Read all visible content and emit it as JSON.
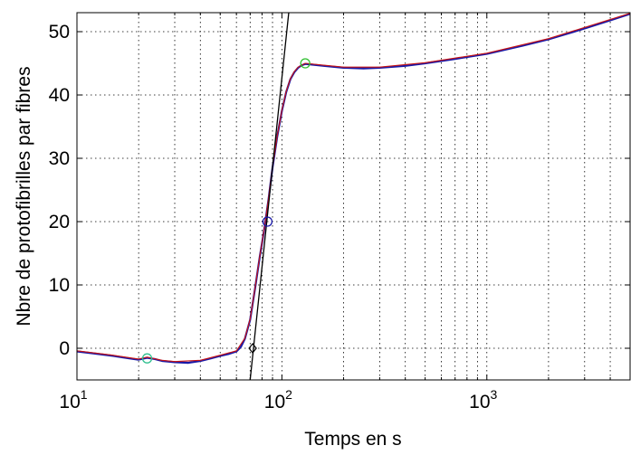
{
  "chart_data": {
    "type": "line",
    "title": "",
    "xlabel": "Temps en s",
    "ylabel": "Nbre de protofibrilles par fibres",
    "x_scale": "log",
    "xlim": [
      10,
      5000
    ],
    "ylim": [
      -5,
      53
    ],
    "grid": true,
    "x_ticks": [
      {
        "value": 10,
        "base": "10",
        "exp": "1"
      },
      {
        "value": 100,
        "base": "10",
        "exp": "2"
      },
      {
        "value": 1000,
        "base": "10",
        "exp": "3"
      }
    ],
    "y_ticks": [
      0,
      10,
      20,
      30,
      40,
      50
    ],
    "series": [
      {
        "color": "#1a1aa8",
        "x": [
          10,
          12,
          15,
          18,
          20,
          22,
          24,
          26,
          30,
          35,
          40,
          45,
          50,
          55,
          60,
          63,
          66,
          70,
          74,
          78,
          82,
          86,
          90,
          95,
          100,
          105,
          110,
          115,
          120,
          125,
          130,
          140,
          160,
          200,
          250,
          300,
          400,
          500,
          700,
          1000,
          1500,
          2000,
          3000,
          4000,
          5000
        ],
        "y": [
          -0.5,
          -0.8,
          -1.2,
          -1.6,
          -1.8,
          -1.5,
          -1.7,
          -2.0,
          -2.2,
          -2.3,
          -2.0,
          -1.6,
          -1.2,
          -0.9,
          -0.5,
          0.2,
          1.5,
          4.5,
          9.5,
          14.5,
          18.8,
          23.5,
          28.5,
          33.5,
          37.5,
          40.5,
          42.5,
          43.6,
          44.3,
          44.7,
          44.9,
          44.8,
          44.6,
          44.3,
          44.2,
          44.3,
          44.6,
          45.0,
          45.7,
          46.5,
          47.8,
          48.8,
          50.5,
          51.8,
          52.8
        ]
      },
      {
        "color": "#c81414",
        "x": [
          10,
          15,
          20,
          22,
          26,
          30,
          40,
          50,
          60,
          66,
          70,
          74,
          78,
          82,
          86,
          90,
          95,
          100,
          105,
          110,
          115,
          120,
          130,
          160,
          200,
          300,
          500,
          1000,
          2000,
          5000
        ],
        "y": [
          -0.4,
          -1.1,
          -1.7,
          -1.4,
          -1.9,
          -2.1,
          -1.9,
          -1.1,
          -0.4,
          1.6,
          4.6,
          9.6,
          14.6,
          18.9,
          23.6,
          28.6,
          33.6,
          37.6,
          40.6,
          42.6,
          43.7,
          44.4,
          45.0,
          44.7,
          44.4,
          44.4,
          45.1,
          46.6,
          48.9,
          52.9
        ]
      }
    ],
    "fit_line": {
      "color": "#000000",
      "x": [
        70,
        108
      ],
      "y": [
        -5,
        53
      ]
    },
    "markers": [
      {
        "x": 22,
        "y": -1.6,
        "color": "#2fbf8f",
        "shape": "circle"
      },
      {
        "x": 85,
        "y": 20,
        "color": "#1a1aa8",
        "shape": "circle"
      },
      {
        "x": 130,
        "y": 45,
        "color": "#2fbf2f",
        "shape": "circle"
      },
      {
        "x": 72,
        "y": 0,
        "color": "#000000",
        "shape": "diamond"
      }
    ]
  }
}
